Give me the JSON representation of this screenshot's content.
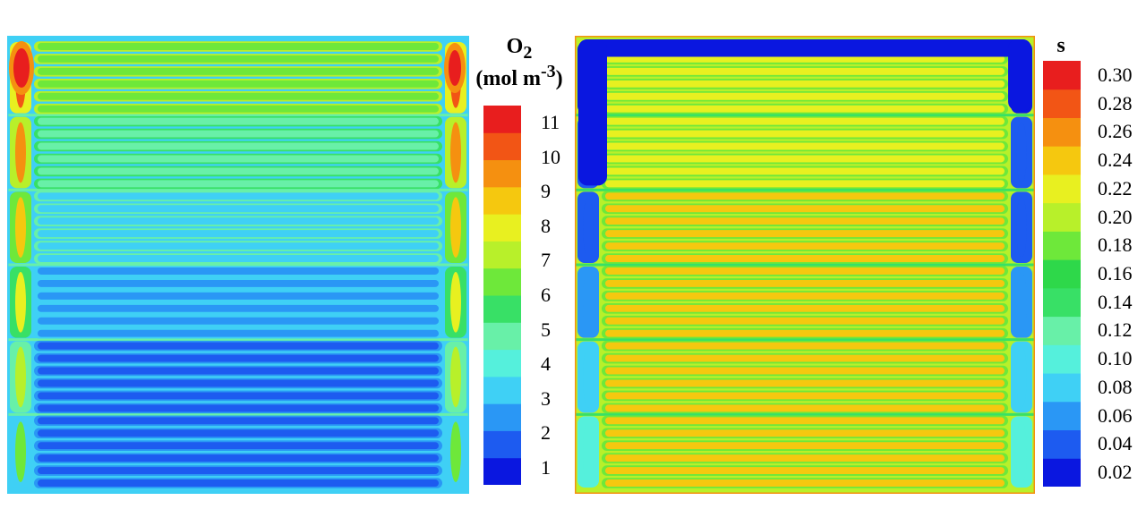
{
  "chart_data": [
    {
      "type": "heatmap",
      "title": "",
      "colorbar": {
        "title_html": "O<sub>2</sub><br>(mol m<sup>-3</sup>)",
        "ticks": [
          "1",
          "2",
          "3",
          "4",
          "5",
          "6",
          "7",
          "8",
          "9",
          "10",
          "11"
        ],
        "range": [
          0.5,
          11.5
        ],
        "colors": [
          "#0a17e0",
          "#1d5bf0",
          "#2a97f5",
          "#3fd0f5",
          "#55f0dc",
          "#68f0a8",
          "#38e066",
          "#6ee83a",
          "#b8f02a",
          "#e8f020",
          "#f5c80f",
          "#f59010",
          "#f25515",
          "#e81e1e"
        ]
      },
      "channels": {
        "count": 36,
        "block_boundaries": [
          6,
          12,
          18,
          24,
          30
        ],
        "band_values": [
          6.2,
          4.6,
          3.6,
          2.6,
          1.8,
          1.3
        ],
        "manifold_values": [
          8.0,
          7.0,
          6.0,
          5.5,
          4.5,
          3.5
        ]
      }
    },
    {
      "type": "heatmap",
      "title": "",
      "colorbar": {
        "title": "s",
        "ticks": [
          "0.30",
          "0.28",
          "0.26",
          "0.24",
          "0.22",
          "0.20",
          "0.18",
          "0.16",
          "0.14",
          "0.12",
          "0.10",
          "0.08",
          "0.06",
          "0.04",
          "0.02"
        ],
        "range": [
          0.01,
          0.31
        ],
        "colors": [
          "#0a17e0",
          "#1d5bf0",
          "#2a97f5",
          "#3fd0f5",
          "#55f0dc",
          "#68f0a8",
          "#38e066",
          "#2ed84a",
          "#6ee83a",
          "#b8f02a",
          "#e8f020",
          "#f5c80f",
          "#f59010",
          "#f25515",
          "#e81e1e"
        ]
      },
      "channels": {
        "count": 36,
        "block_boundaries": [
          6,
          12,
          18,
          24,
          30
        ],
        "band_values": [
          0.21,
          0.22,
          0.23,
          0.23,
          0.23,
          0.23
        ],
        "manifold_values": [
          0.02,
          0.03,
          0.04,
          0.05,
          0.07,
          0.09
        ]
      }
    }
  ]
}
